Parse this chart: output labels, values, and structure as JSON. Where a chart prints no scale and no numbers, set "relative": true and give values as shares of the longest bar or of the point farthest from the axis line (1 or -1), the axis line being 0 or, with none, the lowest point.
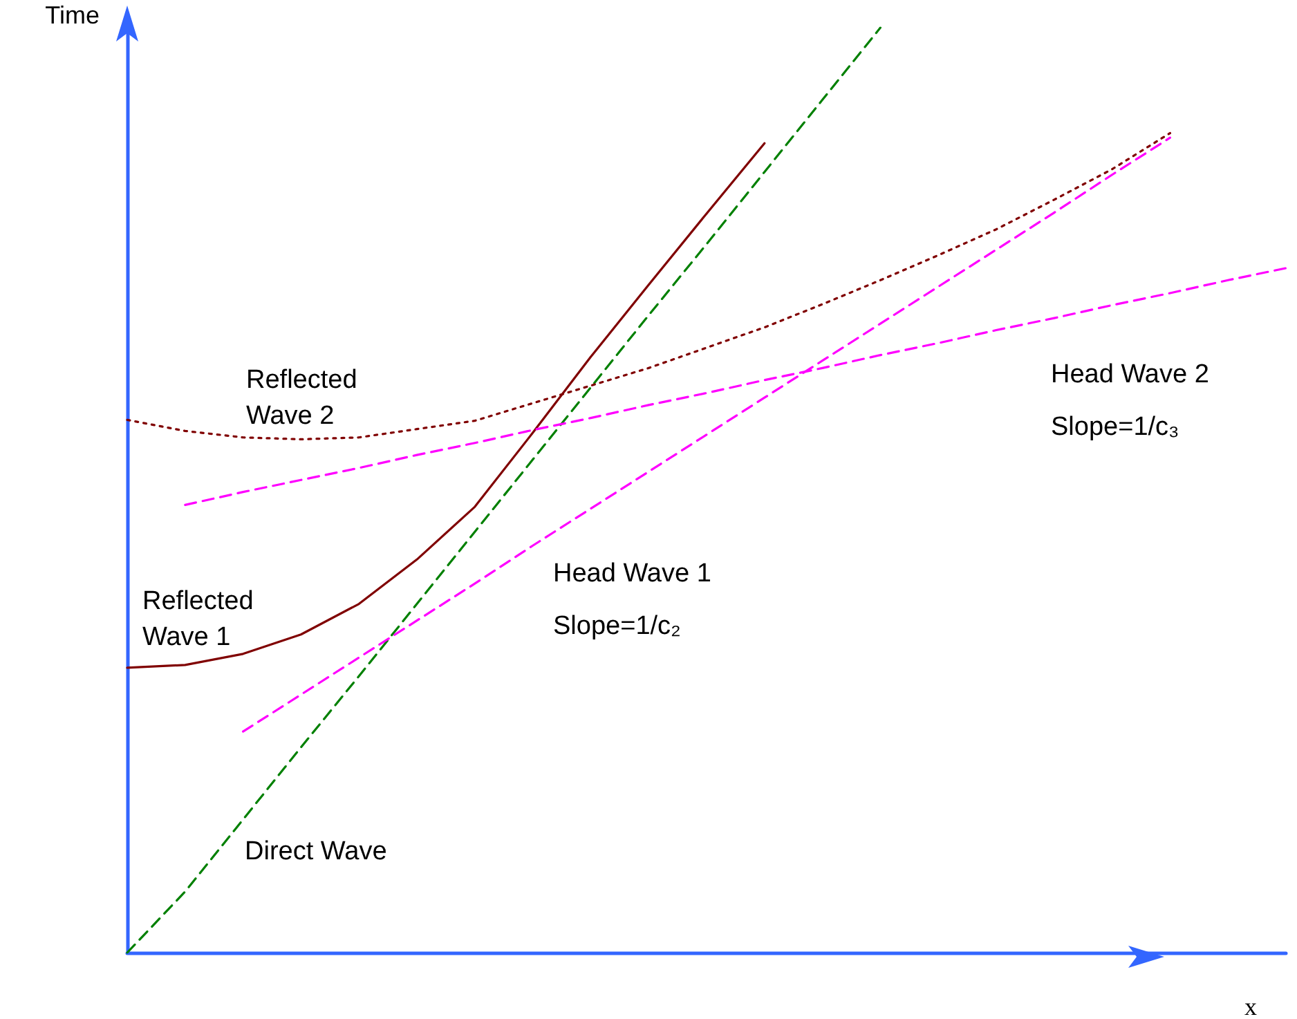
{
  "chart_data": {
    "type": "line",
    "relative": true,
    "xlabel": "x",
    "ylabel": "Time",
    "marker": "none",
    "categories": [
      null,
      null,
      null,
      null,
      null,
      null,
      null,
      null,
      null,
      null,
      null,
      null,
      null,
      null,
      null,
      null,
      null,
      null,
      null,
      null,
      null
    ],
    "series": [
      {
        "color": "#008000",
        "line_style": "dashed",
        "values": [
          0,
          0.066,
          0.144,
          0.222,
          0.299,
          0.377,
          0.455,
          0.533,
          0.611,
          0.689,
          0.766,
          0.844,
          0.922,
          1.0,
          null,
          null,
          null,
          null,
          null,
          null,
          null
        ]
      },
      {
        "color": "#800000",
        "line_style": "solid",
        "values": [
          0.308,
          0.311,
          0.323,
          0.344,
          0.377,
          0.425,
          0.482,
          0.562,
          0.644,
          0.722,
          0.799,
          0.875,
          null,
          null,
          null,
          null,
          null,
          null,
          null,
          null,
          null
        ]
      },
      {
        "color": "#800000",
        "line_style": "dotted",
        "values": [
          0.576,
          0.564,
          0.557,
          0.555,
          0.557,
          0.566,
          0.575,
          0.594,
          0.613,
          0.632,
          0.654,
          0.676,
          0.701,
          0.727,
          0.754,
          0.782,
          0.814,
          0.847,
          0.886,
          null,
          null
        ]
      },
      {
        "color": "#ff00ff",
        "line_style": "dashed",
        "values": [
          null,
          null,
          0.239,
          0.279,
          0.319,
          0.359,
          0.399,
          0.44,
          0.48,
          0.52,
          0.56,
          0.6,
          0.64,
          0.68,
          0.72,
          0.76,
          0.8,
          0.841,
          0.881,
          null,
          null
        ]
      },
      {
        "color": "#ff00ff",
        "line_style": "dashed",
        "values": [
          null,
          0.484,
          0.498,
          0.511,
          0.524,
          0.538,
          0.551,
          0.565,
          0.578,
          0.592,
          0.605,
          0.619,
          0.632,
          0.646,
          0.659,
          0.673,
          0.686,
          0.7,
          0.713,
          0.727,
          0.74
        ]
      }
    ],
    "annotations": [
      "Reflected\nWave 2",
      "Reflected\nWave 1",
      "Head Wave 1",
      "Slope=1/c₂",
      "Head Wave 2",
      "Slope=1/c₃",
      "Direct Wave"
    ]
  }
}
